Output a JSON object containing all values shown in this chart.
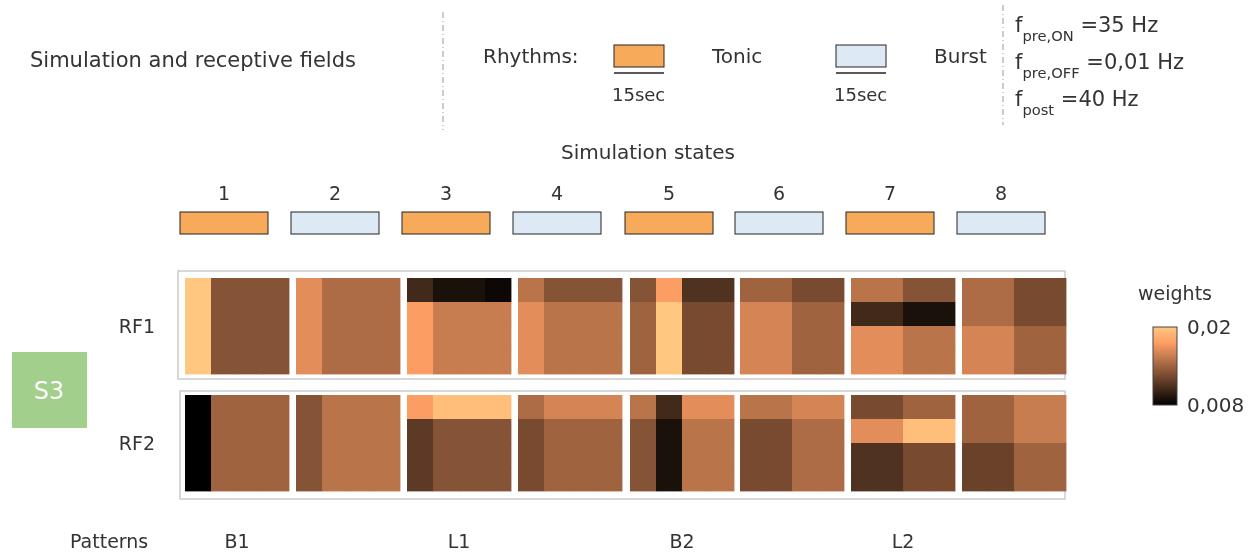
{
  "chart_data": [
    {
      "type": "other",
      "title": "Simulation and receptive fields",
      "categories": [
        "Tonic",
        "Burst"
      ],
      "colors": [
        "#f7ab5a",
        "#ddeaf6"
      ],
      "annotations": [
        "Rhythms:",
        "15sec",
        "15sec",
        "f$_{pre,ON}$ =35 Hz",
        "f$_{pre,OFF}$ =0,01 Hz",
        "f$_{post}$ =40 Hz",
        "Simulation states",
        "Patterns",
        "S3",
        "RF1",
        "RF2",
        "B1",
        "L1",
        "B2",
        "L2"
      ]
    },
    {
      "type": "heatmap",
      "categories": [
        null,
        "1",
        null,
        null,
        null,
        "2",
        null,
        null,
        null,
        "3",
        null,
        null,
        null,
        "4",
        null,
        null,
        null,
        "5",
        null,
        null,
        null,
        "6",
        null,
        null,
        null,
        "7",
        null,
        null,
        null,
        "8",
        null,
        null
      ],
      "y_categories": [
        null,
        null,
        null,
        null,
        null,
        null,
        null,
        null
      ],
      "clim": [
        0.008,
        0.02
      ],
      "cticks": [
        {
          "value": 0.008,
          "label": "0,008"
        },
        {
          "value": 0.02,
          "label": "0,02"
        }
      ],
      "clabel": "weights",
      "cells": [
        [
          0.02,
          0.013,
          0.013,
          0.013,
          0.0165,
          0.0145,
          0.0145,
          0.0145,
          0.0105,
          0.009,
          0.009,
          0.0085,
          0.015,
          0.013,
          0.013,
          0.013,
          0.013,
          0.0175,
          0.011,
          0.011,
          0.014,
          0.014,
          0.0125,
          0.0125,
          0.015,
          0.015,
          0.013,
          0.013,
          0.0145,
          0.0145,
          0.0125,
          0.0125
        ],
        [
          0.02,
          0.013,
          0.013,
          0.013,
          0.0165,
          0.0145,
          0.0145,
          0.0145,
          0.0175,
          0.0155,
          0.0155,
          0.0155,
          0.0165,
          0.015,
          0.015,
          0.015,
          0.014,
          0.02,
          0.0125,
          0.0125,
          0.016,
          0.016,
          0.014,
          0.014,
          0.0105,
          0.0105,
          0.009,
          0.009,
          0.0145,
          0.0145,
          0.0125,
          0.0125
        ],
        [
          0.02,
          0.013,
          0.013,
          0.013,
          0.0165,
          0.0145,
          0.0145,
          0.0145,
          0.0175,
          0.0155,
          0.0155,
          0.0155,
          0.0165,
          0.015,
          0.015,
          0.015,
          0.014,
          0.02,
          0.0125,
          0.0125,
          0.016,
          0.016,
          0.014,
          0.014,
          0.0165,
          0.0165,
          0.015,
          0.015,
          0.016,
          0.016,
          0.014,
          0.014
        ],
        [
          0.02,
          0.013,
          0.013,
          0.013,
          0.0165,
          0.0145,
          0.0145,
          0.0145,
          0.0175,
          0.0155,
          0.0155,
          0.0155,
          0.0165,
          0.015,
          0.015,
          0.015,
          0.014,
          0.02,
          0.0125,
          0.0125,
          0.016,
          0.016,
          0.014,
          0.014,
          0.0165,
          0.0165,
          0.015,
          0.015,
          0.016,
          0.016,
          0.014,
          0.014
        ],
        [
          0.008,
          0.014,
          0.014,
          0.014,
          0.013,
          0.015,
          0.015,
          0.015,
          0.0175,
          0.0195,
          0.0195,
          0.0195,
          0.0145,
          0.016,
          0.016,
          0.016,
          0.015,
          0.0105,
          0.0165,
          0.0165,
          0.015,
          0.015,
          0.016,
          0.016,
          0.0125,
          0.0125,
          0.014,
          0.014,
          0.014,
          0.014,
          0.0155,
          0.0155
        ],
        [
          0.008,
          0.014,
          0.014,
          0.014,
          0.013,
          0.015,
          0.015,
          0.015,
          0.0115,
          0.013,
          0.013,
          0.013,
          0.0125,
          0.014,
          0.014,
          0.014,
          0.013,
          0.009,
          0.015,
          0.015,
          0.0125,
          0.0125,
          0.0145,
          0.0145,
          0.0165,
          0.0165,
          0.0195,
          0.0195,
          0.014,
          0.014,
          0.0155,
          0.0155
        ],
        [
          0.008,
          0.014,
          0.014,
          0.014,
          0.013,
          0.015,
          0.015,
          0.015,
          0.0115,
          0.013,
          0.013,
          0.013,
          0.0125,
          0.014,
          0.014,
          0.014,
          0.013,
          0.009,
          0.015,
          0.015,
          0.0125,
          0.0125,
          0.0145,
          0.0145,
          0.011,
          0.011,
          0.0125,
          0.0125,
          0.012,
          0.012,
          0.014,
          0.014
        ],
        [
          0.008,
          0.014,
          0.014,
          0.014,
          0.013,
          0.015,
          0.015,
          0.015,
          0.0115,
          0.013,
          0.013,
          0.013,
          0.0125,
          0.014,
          0.014,
          0.014,
          0.013,
          0.009,
          0.015,
          0.015,
          0.0125,
          0.0125,
          0.0145,
          0.0145,
          0.011,
          0.011,
          0.0125,
          0.0125,
          0.012,
          0.012,
          0.014,
          0.014
        ]
      ]
    }
  ]
}
